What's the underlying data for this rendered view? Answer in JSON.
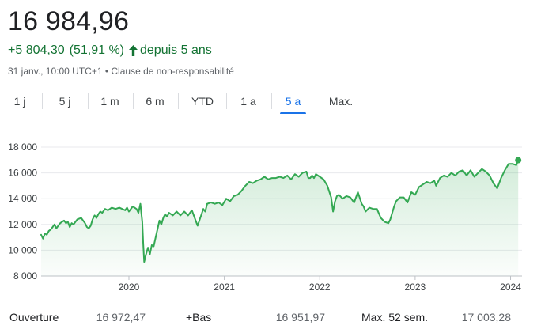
{
  "header": {
    "price": "16 984,96",
    "change_abs": "+5 804,30",
    "change_pct": "(51,91 %)",
    "change_period": "depuis 5 ans",
    "arrow_icon": "arrow-up-icon",
    "timestamp": "31 janv., 10:00 UTC+1",
    "separator": " • ",
    "disclaimer": "Clause de non-responsabilité",
    "up_color": "#137333"
  },
  "tabs": [
    {
      "label": "1 j",
      "active": false
    },
    {
      "label": "5 j",
      "active": false
    },
    {
      "label": "1 m",
      "active": false
    },
    {
      "label": "6 m",
      "active": false
    },
    {
      "label": "YTD",
      "active": false
    },
    {
      "label": "1 a",
      "active": false
    },
    {
      "label": "5 a",
      "active": true
    },
    {
      "label": "Max.",
      "active": false
    }
  ],
  "chart_data": {
    "type": "area",
    "title": "",
    "xlabel": "",
    "ylabel": "",
    "ylim": [
      8000,
      18000
    ],
    "y_ticks": [
      8000,
      10000,
      12000,
      14000,
      16000,
      18000
    ],
    "y_tick_labels": [
      "8 000",
      "10 000",
      "12 000",
      "14 000",
      "16 000",
      "18 000"
    ],
    "x_ticks": [
      2020,
      2021,
      2022,
      2023,
      2024
    ],
    "x_tick_labels": [
      "2020",
      "2021",
      "2022",
      "2023",
      "2024"
    ],
    "xlim": [
      2019.08,
      2024.12
    ],
    "grid": "horizontal",
    "line_color": "#34a853",
    "fill_color": "#34a853",
    "series": [
      {
        "x": [
          2019.08,
          2019.1,
          2019.12,
          2019.14,
          2019.16,
          2019.18,
          2019.2,
          2019.22,
          2019.24,
          2019.26,
          2019.28,
          2019.3,
          2019.32,
          2019.34,
          2019.36,
          2019.38,
          2019.4,
          2019.42,
          2019.44,
          2019.46,
          2019.5,
          2019.54,
          2019.56,
          2019.58,
          2019.6,
          2019.62,
          2019.64,
          2019.66,
          2019.68,
          2019.7,
          2019.72,
          2019.75,
          2019.78,
          2019.82,
          2019.86,
          2019.9,
          2019.93,
          2019.96,
          2019.98,
          2020.0,
          2020.04,
          2020.08,
          2020.1,
          2020.12,
          2020.14,
          2020.15,
          2020.16,
          2020.18,
          2020.2,
          2020.22,
          2020.24,
          2020.26,
          2020.28,
          2020.32,
          2020.34,
          2020.36,
          2020.38,
          2020.4,
          2020.42,
          2020.46,
          2020.5,
          2020.54,
          2020.58,
          2020.62,
          2020.66,
          2020.72,
          2020.78,
          2020.8,
          2020.82,
          2020.86,
          2020.9,
          2020.94,
          2020.98,
          2021.02,
          2021.06,
          2021.1,
          2021.14,
          2021.18,
          2021.22,
          2021.26,
          2021.3,
          2021.34,
          2021.38,
          2021.42,
          2021.46,
          2021.5,
          2021.54,
          2021.58,
          2021.62,
          2021.66,
          2021.7,
          2021.74,
          2021.78,
          2021.82,
          2021.86,
          2021.88,
          2021.9,
          2021.92,
          2021.94,
          2021.96,
          2022.0,
          2022.04,
          2022.08,
          2022.12,
          2022.14,
          2022.16,
          2022.18,
          2022.2,
          2022.24,
          2022.28,
          2022.32,
          2022.36,
          2022.4,
          2022.44,
          2022.46,
          2022.48,
          2022.52,
          2022.56,
          2022.6,
          2022.64,
          2022.68,
          2022.72,
          2022.74,
          2022.76,
          2022.78,
          2022.8,
          2022.84,
          2022.88,
          2022.92,
          2022.96,
          2023.0,
          2023.04,
          2023.08,
          2023.12,
          2023.16,
          2023.2,
          2023.22,
          2023.26,
          2023.3,
          2023.34,
          2023.38,
          2023.42,
          2023.46,
          2023.5,
          2023.54,
          2023.58,
          2023.62,
          2023.66,
          2023.7,
          2023.74,
          2023.78,
          2023.82,
          2023.86,
          2023.9,
          2023.94,
          2023.98,
          2024.02,
          2024.06,
          2024.08
        ],
        "values": [
          11200,
          10900,
          11300,
          11200,
          11500,
          11600,
          11800,
          12000,
          11700,
          11900,
          12100,
          12200,
          12300,
          12100,
          12200,
          11800,
          12100,
          12000,
          12200,
          12400,
          12500,
          12100,
          11800,
          11700,
          11900,
          12400,
          12700,
          12500,
          12800,
          13000,
          12900,
          13200,
          13100,
          13300,
          13200,
          13300,
          13200,
          13100,
          13300,
          13000,
          13400,
          13200,
          12900,
          13600,
          12200,
          10500,
          9100,
          9700,
          10200,
          9700,
          10400,
          10300,
          11000,
          12300,
          12000,
          12500,
          12800,
          12600,
          12900,
          12700,
          13000,
          12700,
          13000,
          12700,
          13100,
          11900,
          13200,
          13000,
          13600,
          13700,
          13600,
          13700,
          13500,
          14000,
          13800,
          14200,
          14300,
          14600,
          15000,
          15300,
          15200,
          15400,
          15500,
          15700,
          15500,
          15600,
          15600,
          15700,
          15600,
          15800,
          15500,
          15900,
          15700,
          16000,
          16100,
          15600,
          15600,
          15800,
          15600,
          15900,
          15700,
          15500,
          15000,
          14100,
          13000,
          13800,
          14200,
          14300,
          14000,
          14200,
          14100,
          13700,
          14500,
          13600,
          13400,
          13000,
          13300,
          13200,
          13200,
          12500,
          12200,
          12100,
          12400,
          12900,
          13400,
          13800,
          14100,
          14100,
          13700,
          14500,
          14300,
          14900,
          15100,
          15300,
          15200,
          15400,
          15000,
          15600,
          15800,
          15700,
          16000,
          15800,
          16100,
          16200,
          15800,
          16200,
          15700,
          16000,
          16300,
          16100,
          15800,
          15200,
          14800,
          15600,
          16200,
          16700,
          16700,
          16600,
          16985
        ]
      }
    ]
  },
  "stats": [
    {
      "label": "Ouverture",
      "value": "16 972,47"
    },
    {
      "label": "+Bas",
      "value": "16 951,97"
    },
    {
      "label": "Max. 52 sem.",
      "value": "17 003,28"
    }
  ]
}
